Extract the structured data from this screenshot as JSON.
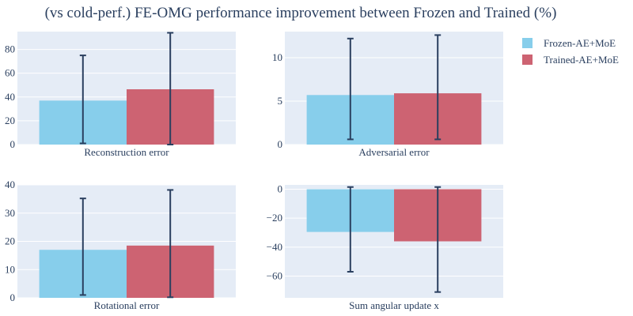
{
  "title": "(vs cold-perf.) FE-OMG performance improvement between Frozen and Trained (%)",
  "legend": {
    "placement": "top-right",
    "entries": [
      {
        "name": "Frozen-AE+MoE",
        "color": "#87ceeb"
      },
      {
        "name": "Trained-AE+MoE",
        "color": "#cd6372"
      }
    ]
  },
  "chart_data": [
    {
      "type": "bar",
      "xlabel": "Reconstruction error",
      "ylim": [
        0,
        95
      ],
      "yticks": [
        0,
        20,
        40,
        60,
        80
      ],
      "grid": true,
      "series": [
        {
          "name": "Frozen-AE+MoE",
          "value": 37,
          "error_low": 1,
          "error_high": 75
        },
        {
          "name": "Trained-AE+MoE",
          "value": 46.5,
          "error_low": 0,
          "error_high": 94
        }
      ]
    },
    {
      "type": "bar",
      "xlabel": "Adversarial error",
      "ylim": [
        0,
        13
      ],
      "yticks": [
        0,
        5,
        10
      ],
      "grid": true,
      "series": [
        {
          "name": "Frozen-AE+MoE",
          "value": 5.7,
          "error_low": 0.6,
          "error_high": 12.2
        },
        {
          "name": "Trained-AE+MoE",
          "value": 5.9,
          "error_low": 0.6,
          "error_high": 12.6
        }
      ]
    },
    {
      "type": "bar",
      "xlabel": "Rotational error",
      "ylim": [
        0,
        40
      ],
      "yticks": [
        0,
        10,
        20,
        30,
        40
      ],
      "grid": true,
      "series": [
        {
          "name": "Frozen-AE+MoE",
          "value": 17,
          "error_low": 1,
          "error_high": 35.2
        },
        {
          "name": "Trained-AE+MoE",
          "value": 18.5,
          "error_low": 0.2,
          "error_high": 38.2
        }
      ]
    },
    {
      "type": "bar",
      "xlabel": "Sum angular update x",
      "ylim": [
        -75,
        3
      ],
      "yticks": [
        -60,
        -40,
        -20,
        0
      ],
      "grid": true,
      "series": [
        {
          "name": "Frozen-AE+MoE",
          "value": -29.5,
          "error_low": -57,
          "error_high": 1.5
        },
        {
          "name": "Trained-AE+MoE",
          "value": -36,
          "error_low": -71,
          "error_high": 1.5
        }
      ]
    }
  ]
}
